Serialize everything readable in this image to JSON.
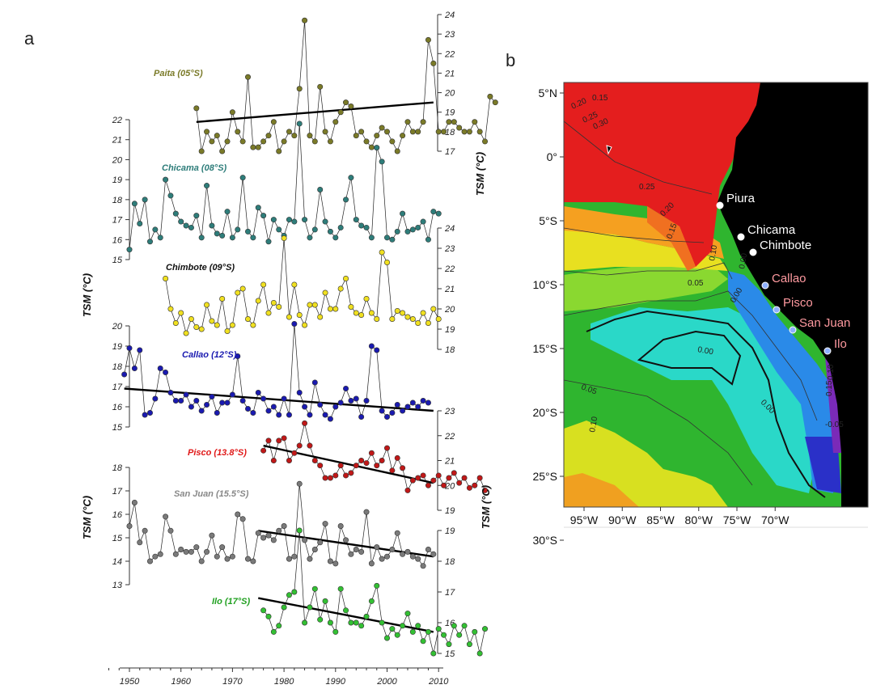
{
  "panel_a": {
    "letter": "a"
  },
  "panel_b": {
    "letter": "b"
  },
  "chart_data": [
    {
      "type": "line",
      "panel": "a",
      "x_ticks": [
        "1950",
        "1960",
        "1970",
        "1980",
        "1990",
        "2000",
        "2010"
      ],
      "axis_label": "TSM  (°C)",
      "series": [
        {
          "name": "Paita (05°S)",
          "color": "#7a7a28",
          "label_color": "#7a7a28",
          "trend": true,
          "axis_side": "right",
          "axis_ticks": [
            17,
            18,
            19,
            20,
            21,
            22,
            23,
            24
          ],
          "range": [
            17,
            24
          ],
          "start_year": 1963,
          "values": [
            19.2,
            17.0,
            18.0,
            17.5,
            17.8,
            17.0,
            17.5,
            19.0,
            18.0,
            17.5,
            20.8,
            17.2,
            17.2,
            17.5,
            17.8,
            18.5,
            17.0,
            17.5,
            18.0,
            17.8,
            20.2,
            23.7,
            17.8,
            17.5,
            20.3,
            18.0,
            17.5,
            18.5,
            19.0,
            19.5,
            19.3,
            17.8,
            18.0,
            17.5,
            17.2,
            17.8,
            18.2,
            18.0,
            17.5,
            17.0,
            17.8,
            18.5,
            18.0,
            18.0,
            18.5,
            22.7,
            21.5,
            18.0,
            18.0,
            18.5,
            18.5,
            18.2,
            18.0,
            18.0,
            18.5,
            18.0,
            17.5,
            19.8,
            19.5
          ],
          "trend_line": [
            [
              1963,
              18.5
            ],
            [
              2009,
              19.5
            ]
          ]
        },
        {
          "name": "Chicama (08°S)",
          "color": "#2e7d7a",
          "label_color": "#2e7d7a",
          "trend": false,
          "axis_side": "left",
          "axis_ticks": [
            15,
            16,
            17,
            18,
            19,
            20,
            21,
            22
          ],
          "range": [
            15,
            22
          ],
          "start_year": 1950,
          "values": [
            15.5,
            17.8,
            16.8,
            18.0,
            15.9,
            16.5,
            16.1,
            19.0,
            18.2,
            17.3,
            16.9,
            16.7,
            16.6,
            17.2,
            16.1,
            18.7,
            16.7,
            16.3,
            16.2,
            17.4,
            16.1,
            16.5,
            19.1,
            16.4,
            16.1,
            17.6,
            17.2,
            15.9,
            17.0,
            16.5,
            16.2,
            17.0,
            16.9,
            21.8,
            17.0,
            16.1,
            16.5,
            18.5,
            16.9,
            16.4,
            16.1,
            16.6,
            18.0,
            19.1,
            17.0,
            16.7,
            16.6,
            16.1,
            20.6,
            19.9,
            16.1,
            16.0,
            16.4,
            17.3,
            16.4,
            16.5,
            16.6,
            16.9,
            16.0,
            17.4,
            17.3
          ],
          "trend_line": null
        },
        {
          "name": "Chimbote (09°S)",
          "color": "#f0e020",
          "label_color": "#111111",
          "trend": false,
          "axis_side": "right",
          "axis_ticks": [
            18,
            19,
            20,
            21,
            22,
            23,
            24
          ],
          "range": [
            18,
            24
          ],
          "start_year": 1957,
          "values": [
            21.5,
            20.0,
            19.3,
            19.8,
            18.8,
            19.5,
            19.1,
            19.0,
            20.2,
            19.4,
            19.2,
            20.5,
            18.9,
            19.2,
            20.8,
            21.0,
            19.5,
            19.2,
            20.4,
            21.2,
            19.8,
            20.3,
            20.1,
            23.5,
            19.6,
            21.2,
            19.7,
            19.2,
            20.2,
            20.2,
            19.6,
            20.8,
            20.0,
            20.0,
            21.0,
            21.5,
            20.1,
            19.8,
            19.7,
            20.5,
            19.8,
            19.5,
            22.8,
            22.3,
            19.5,
            19.9,
            19.8,
            19.6,
            19.5,
            19.3,
            19.8,
            19.3,
            20.0,
            19.5
          ],
          "trend_line": null
        },
        {
          "name": "Callao (12°S)",
          "color": "#1a1ab0",
          "label_color": "#1a1ab0",
          "trend": true,
          "axis_side": "left",
          "axis_ticks": [
            15,
            16,
            17,
            18,
            19,
            20
          ],
          "range": [
            15,
            20
          ],
          "start_year": 1949,
          "values": [
            17.6,
            18.9,
            17.9,
            18.8,
            15.6,
            15.7,
            16.4,
            17.9,
            17.7,
            16.7,
            16.3,
            16.3,
            16.6,
            16.0,
            16.3,
            15.8,
            16.1,
            16.5,
            15.7,
            16.2,
            16.2,
            16.6,
            18.5,
            16.3,
            15.9,
            15.7,
            16.7,
            16.4,
            15.8,
            16.0,
            15.6,
            16.4,
            15.6,
            20.1,
            16.7,
            16.0,
            15.6,
            17.2,
            16.1,
            15.6,
            15.4,
            16.0,
            16.2,
            16.9,
            16.3,
            16.4,
            15.5,
            16.3,
            19.0,
            18.8,
            15.8,
            15.5,
            15.7,
            16.1,
            15.8,
            16.0,
            16.2,
            16.0,
            16.3,
            16.2
          ],
          "trend_line": [
            [
              1949,
              16.9
            ],
            [
              2009,
              15.8
            ]
          ]
        },
        {
          "name": "Pisco (13.8°S)",
          "color": "#c01818",
          "label_color": "#e01818",
          "trend": true,
          "axis_side": "right",
          "axis_ticks": [
            19,
            20,
            21,
            22,
            23
          ],
          "range": [
            19,
            23
          ],
          "start_year": 1976,
          "values": [
            21.4,
            21.8,
            21.0,
            21.8,
            21.9,
            21.0,
            21.3,
            21.6,
            22.5,
            21.6,
            21.0,
            20.8,
            20.3,
            20.3,
            20.4,
            20.8,
            20.4,
            20.5,
            20.8,
            21.0,
            20.9,
            21.3,
            20.8,
            21.0,
            21.5,
            20.6,
            21.1,
            20.7,
            19.8,
            20.2,
            20.3,
            20.4,
            20.0,
            20.2,
            20.4,
            20.0,
            20.3,
            20.5,
            20.1,
            20.3,
            19.9,
            20.0,
            20.3,
            19.8
          ],
          "trend_line": [
            [
              1976,
              21.6
            ],
            [
              2009,
              20.1
            ]
          ]
        },
        {
          "name": "San Juan (15.5°S)",
          "color": "#7a7a7a",
          "label_color": "#888888",
          "trend": true,
          "axis_side": "left",
          "axis_ticks": [
            13,
            14,
            15,
            16,
            17,
            18
          ],
          "range": [
            13,
            18
          ],
          "start_year": 1950,
          "values": [
            15.5,
            16.5,
            14.8,
            15.3,
            14.0,
            14.2,
            14.3,
            15.9,
            15.3,
            14.3,
            14.5,
            14.4,
            14.4,
            14.6,
            14.0,
            14.4,
            15.1,
            14.2,
            14.6,
            14.1,
            14.2,
            16.0,
            15.8,
            14.1,
            14.0,
            15.2,
            15.0,
            15.1,
            14.9,
            15.3,
            15.5,
            14.1,
            14.2,
            17.3,
            14.9,
            14.1,
            14.5,
            14.8,
            15.6,
            14.0,
            13.9,
            15.5,
            14.9,
            14.3,
            14.5,
            14.4,
            16.1,
            13.9,
            14.6,
            14.1,
            14.2,
            14.5,
            15.2,
            14.3,
            14.4,
            14.2,
            14.1,
            13.8,
            14.5,
            14.3
          ],
          "trend_line": [
            [
              1975,
              15.3
            ],
            [
              2009,
              14.2
            ]
          ]
        },
        {
          "name": "Ilo (17°S)",
          "color": "#33c033",
          "label_color": "#20a020",
          "trend": true,
          "axis_side": "right",
          "axis_ticks": [
            15,
            16,
            17,
            18,
            19
          ],
          "range": [
            15,
            19
          ],
          "start_year": 1976,
          "values": [
            16.4,
            16.2,
            15.7,
            15.9,
            16.5,
            16.9,
            17.0,
            19.0,
            16.0,
            16.5,
            17.1,
            16.1,
            16.7,
            16.0,
            15.7,
            17.1,
            16.4,
            16.0,
            16.0,
            15.9,
            16.2,
            16.7,
            17.2,
            16.0,
            15.5,
            15.8,
            15.6,
            15.9,
            16.3,
            15.7,
            15.9,
            15.4,
            15.7,
            15.0,
            15.8,
            15.6,
            15.3,
            15.9,
            15.6,
            15.9,
            15.3,
            15.7,
            15.0,
            15.8
          ],
          "trend_line": [
            [
              1975,
              16.8
            ],
            [
              2009,
              15.7
            ]
          ]
        }
      ]
    },
    {
      "type": "heatmap",
      "panel": "b",
      "lon_ticks": [
        "95°W",
        "90°W",
        "85°W",
        "80°W",
        "75°W",
        "70°W"
      ],
      "lat_ticks": [
        "5°N",
        "0°",
        "5°S",
        "10°S",
        "15°S",
        "20°S",
        "25°S",
        "30°S"
      ],
      "contour_labels": [
        "0.15",
        "0.20",
        "0.25",
        "0.30",
        "0.25",
        "0.20",
        "0.15",
        "0.10",
        "0.00",
        "0.05",
        "0.00",
        "0.00",
        "0.05",
        "0.10",
        "0.00",
        "-0.05",
        "0.15",
        "0.10"
      ],
      "stations": [
        {
          "name": "Piura",
          "color": "#ffffff"
        },
        {
          "name": "Chicama",
          "color": "#ffffff"
        },
        {
          "name": "Chimbote",
          "color": "#ffffff"
        },
        {
          "name": "Callao",
          "color": "#ff9aa0"
        },
        {
          "name": "Pisco",
          "color": "#ff9aa0"
        },
        {
          "name": "San Juan",
          "color": "#ff9aa0"
        },
        {
          "name": "Ilo",
          "color": "#ff9aa0"
        }
      ]
    }
  ]
}
